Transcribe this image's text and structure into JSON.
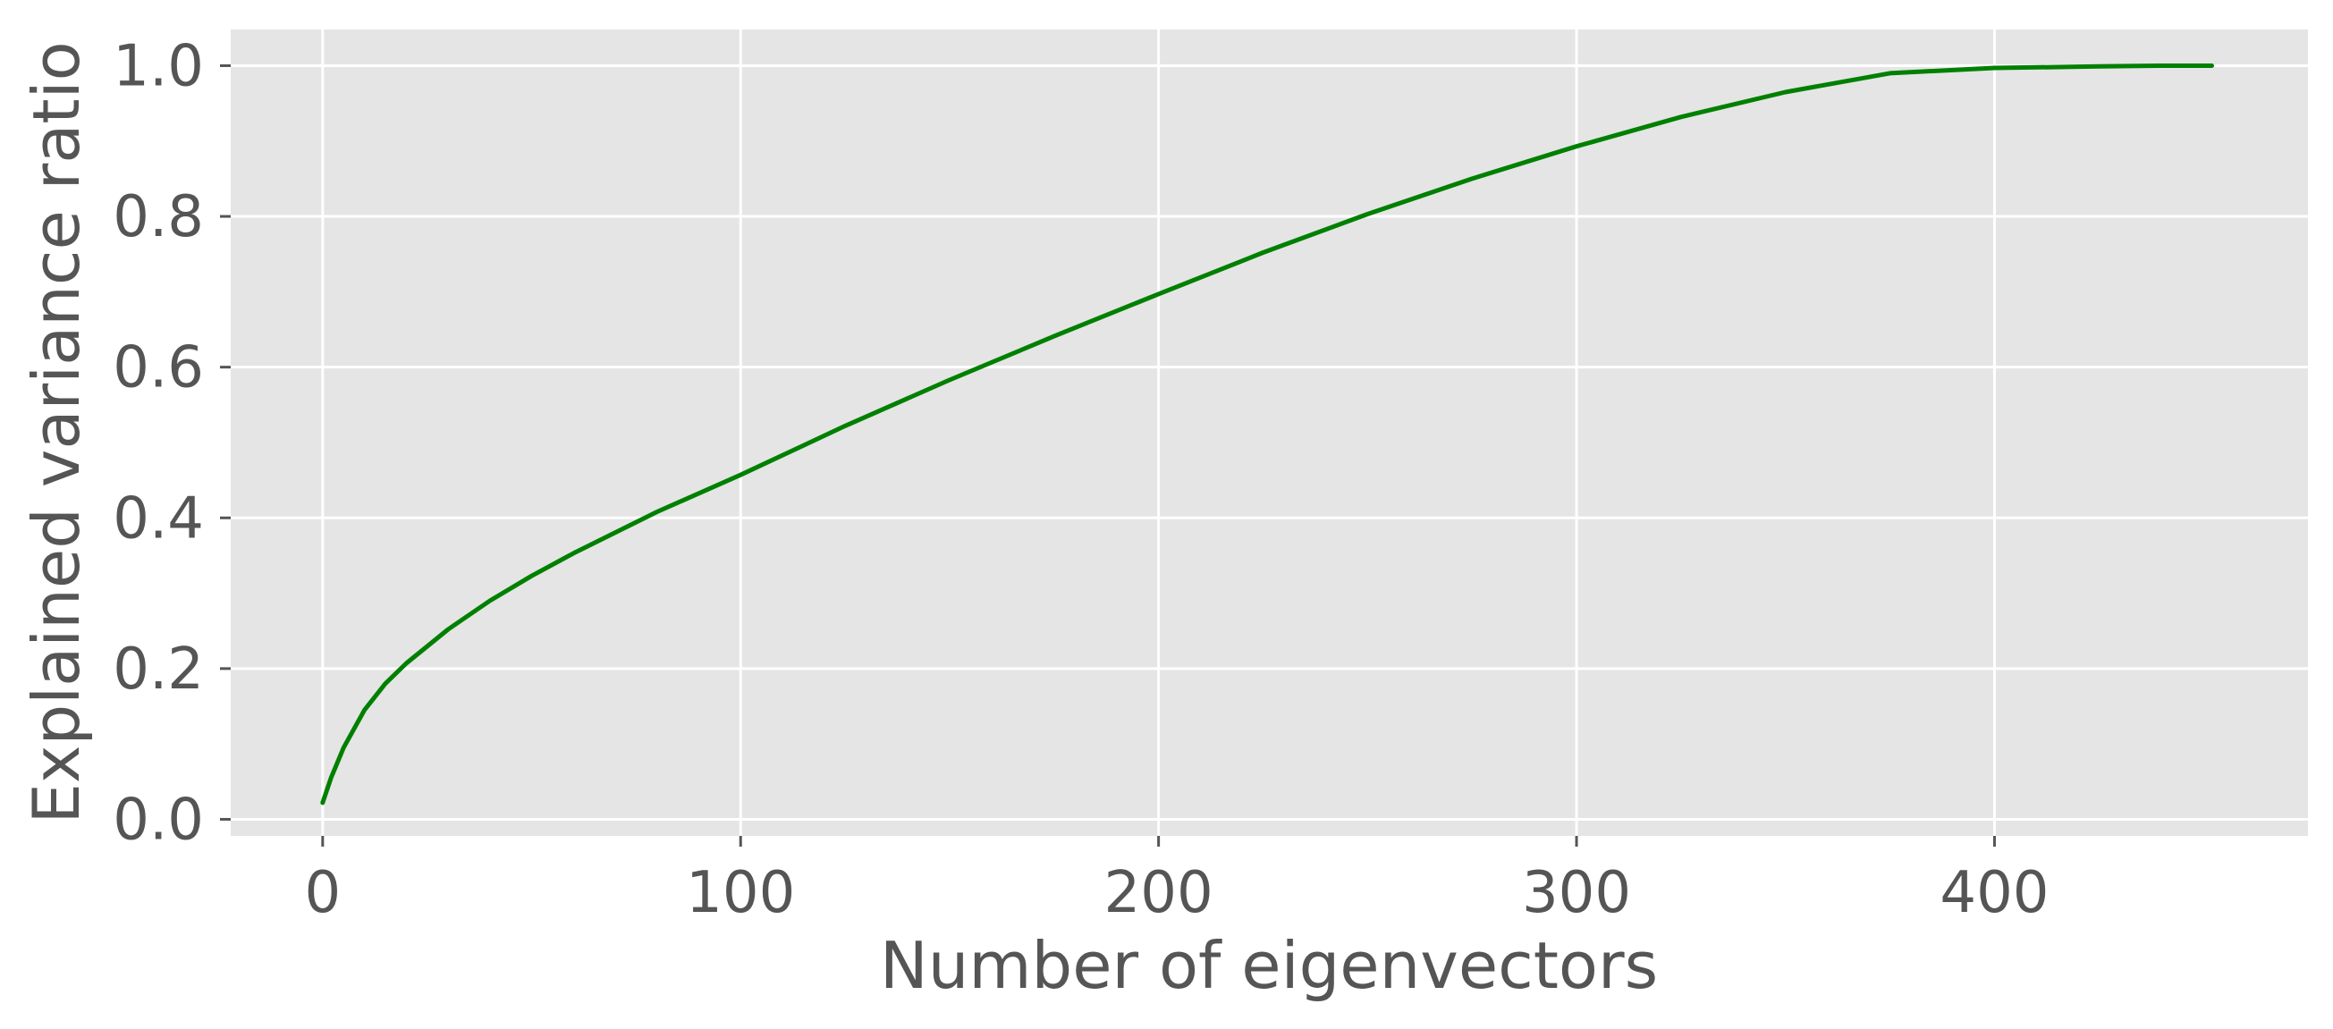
{
  "chart_data": {
    "type": "line",
    "title": "",
    "xlabel": "Number of eigenvectors",
    "ylabel": "Explained variance ratio",
    "xlim": [
      -22,
      475
    ],
    "ylim": [
      -0.022,
      1.048
    ],
    "x_ticks": [
      0,
      100,
      200,
      300,
      400
    ],
    "y_ticks": [
      0.0,
      0.2,
      0.4,
      0.6,
      0.8,
      1.0
    ],
    "x_tick_labels": [
      "0",
      "100",
      "200",
      "300",
      "400"
    ],
    "y_tick_labels": [
      "0.0",
      "0.2",
      "0.4",
      "0.6",
      "0.8",
      "1.0"
    ],
    "grid": true,
    "background": "#e5e5e5",
    "grid_color": "#ffffff",
    "series": [
      {
        "color": "#008000",
        "x": [
          0,
          2,
          5,
          10,
          15,
          20,
          30,
          40,
          50,
          60,
          80,
          100,
          125,
          150,
          175,
          200,
          225,
          250,
          275,
          300,
          325,
          350,
          375,
          400,
          425,
          440,
          452
        ],
        "y": [
          0.022,
          0.055,
          0.095,
          0.145,
          0.18,
          0.207,
          0.252,
          0.29,
          0.323,
          0.353,
          0.408,
          0.457,
          0.522,
          0.583,
          0.641,
          0.697,
          0.752,
          0.803,
          0.85,
          0.893,
          0.932,
          0.965,
          0.99,
          0.997,
          0.999,
          1.0,
          1.0
        ]
      }
    ]
  }
}
